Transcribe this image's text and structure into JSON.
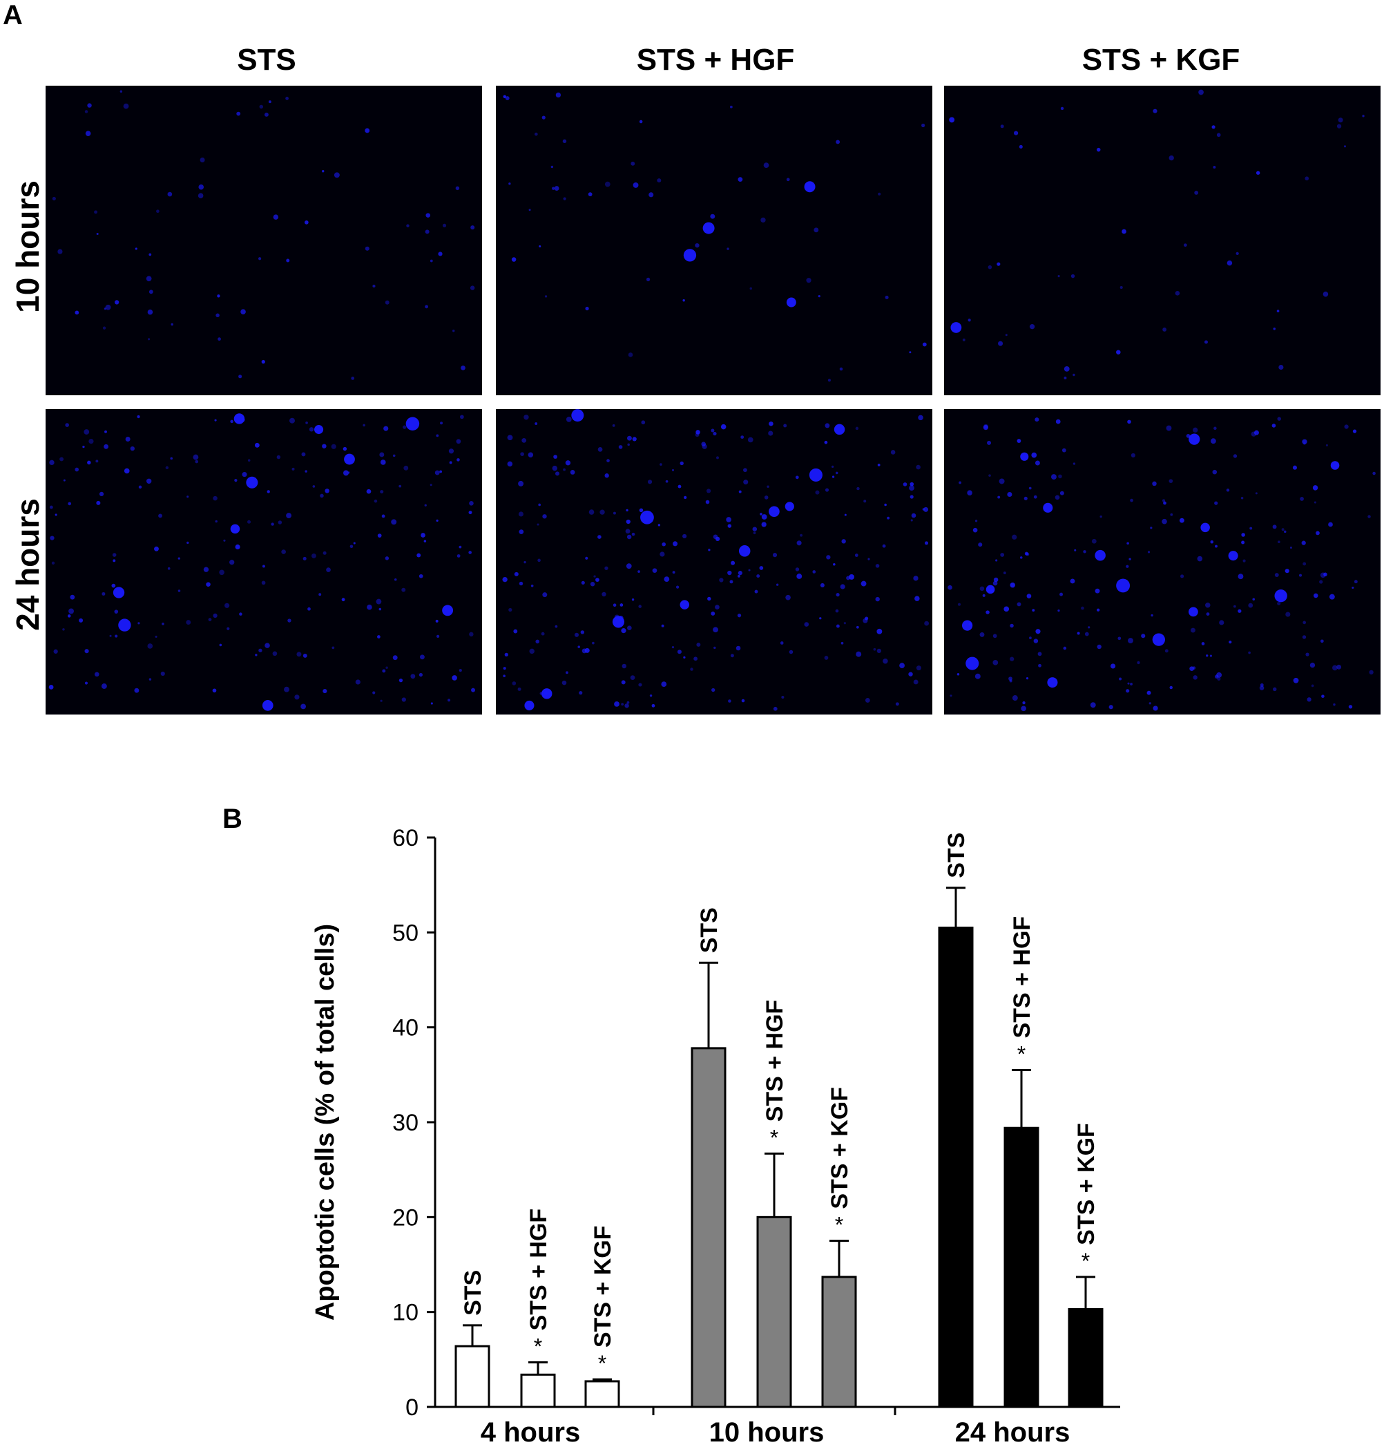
{
  "panel_a": {
    "letter": "A",
    "columns": [
      "STS",
      "STS + HGF",
      "STS + KGF"
    ],
    "rows": [
      "10 hours",
      "24 hours"
    ],
    "stain_color": "#1a1aff",
    "background_color": "#00000a"
  },
  "panel_b": {
    "letter": "B"
  },
  "chart_data": {
    "type": "bar",
    "title": "",
    "xlabel": "",
    "ylabel": "Apoptotic cells (% of total cells)",
    "ylim": [
      0,
      60
    ],
    "yticks": [
      0,
      10,
      20,
      30,
      40,
      50,
      60
    ],
    "groups": [
      {
        "label": "4 hours",
        "color": "#ffffff",
        "bars": [
          {
            "name": "STS",
            "value": 6.4,
            "error": 2.2,
            "star": ""
          },
          {
            "name": "STS + HGF",
            "value": 3.4,
            "error": 1.3,
            "star": "*"
          },
          {
            "name": "STS + KGF",
            "value": 2.7,
            "error": 0.2,
            "star": "*"
          }
        ]
      },
      {
        "label": "10 hours",
        "color": "#808080",
        "bars": [
          {
            "name": "STS",
            "value": 37.8,
            "error": 9.0,
            "star": ""
          },
          {
            "name": "STS + HGF",
            "value": 20.0,
            "error": 6.7,
            "star": "*"
          },
          {
            "name": "STS + KGF",
            "value": 13.7,
            "error": 3.8,
            "star": "*"
          }
        ]
      },
      {
        "label": "24 hours",
        "color": "#000000",
        "bars": [
          {
            "name": "STS",
            "value": 50.5,
            "error": 4.2,
            "star": ""
          },
          {
            "name": "STS + HGF",
            "value": 29.4,
            "error": 6.1,
            "star": "*"
          },
          {
            "name": "STS + KGF",
            "value": 10.3,
            "error": 3.4,
            "star": "*"
          }
        ]
      }
    ]
  }
}
